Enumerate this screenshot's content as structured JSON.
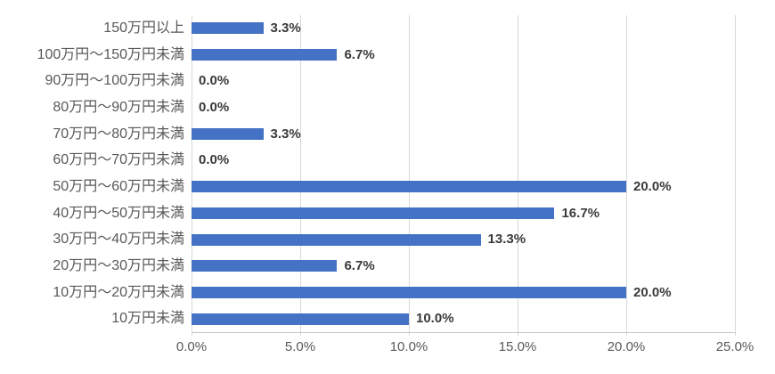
{
  "chart_data": {
    "type": "bar",
    "orientation": "horizontal",
    "title": "",
    "xlabel": "",
    "ylabel": "",
    "categories": [
      "150万円以上",
      "100万円～150万円未満",
      "90万円～100万円未満",
      "80万円～90万円未満",
      "70万円～80万円未満",
      "60万円～70万円未満",
      "50万円～60万円未満",
      "40万円～50万円未満",
      "30万円～40万円未満",
      "20万円～30万円未満",
      "10万円～20万円未満",
      "10万円未満"
    ],
    "values": [
      3.3,
      6.7,
      0.0,
      0.0,
      3.3,
      0.0,
      20.0,
      16.7,
      13.3,
      6.7,
      20.0,
      10.0
    ],
    "value_labels": [
      "3.3%",
      "6.7%",
      "0.0%",
      "0.0%",
      "3.3%",
      "0.0%",
      "20.0%",
      "16.7%",
      "13.3%",
      "6.7%",
      "20.0%",
      "10.0%"
    ],
    "x_ticks": [
      0,
      5,
      10,
      15,
      20,
      25
    ],
    "x_tick_labels": [
      "0.0%",
      "5.0%",
      "10.0%",
      "15.0%",
      "20.0%",
      "25.0%"
    ],
    "xlim": [
      0,
      25
    ],
    "grid": "vertical-on",
    "legend": "none",
    "colors": {
      "bar": "#4472C4",
      "gridline": "#D9D9D9",
      "axis_line": "#C6C6C6",
      "category_label": "#595959",
      "tick_label": "#595959",
      "value_label": "#3A3A3A",
      "background": "#FFFFFF"
    }
  }
}
